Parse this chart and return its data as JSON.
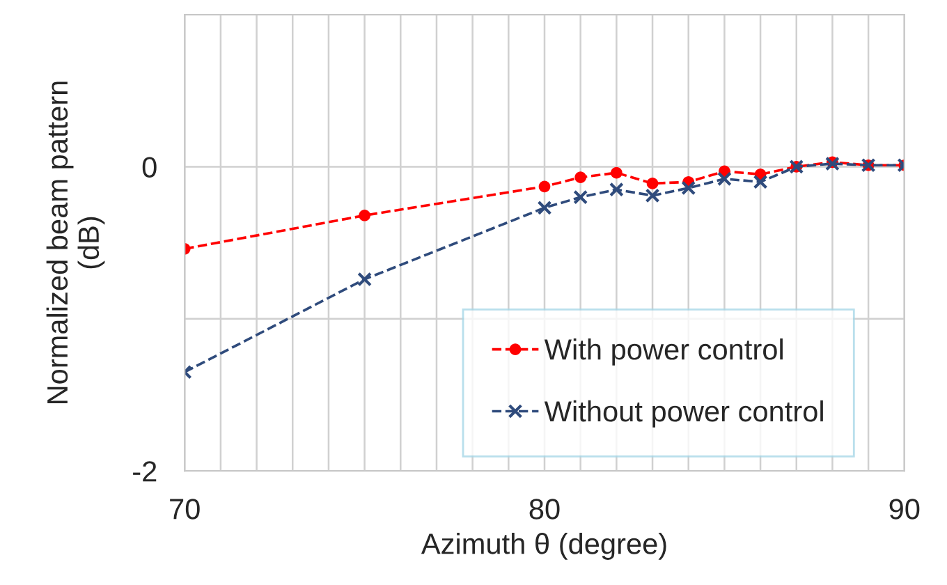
{
  "chart_data": {
    "type": "line",
    "xlabel": "Azimuth θ (degree)",
    "ylabel": "Normalized beam pattern\n(dB)",
    "x": [
      70,
      75,
      80,
      81,
      82,
      83,
      84,
      85,
      86,
      87,
      88,
      89,
      90
    ],
    "series": [
      {
        "name": "With power control",
        "color": "#ff0000",
        "marker": "circle",
        "values": [
          -0.54,
          -0.32,
          -0.13,
          -0.07,
          -0.04,
          -0.11,
          -0.1,
          -0.03,
          -0.05,
          0,
          0.03,
          0.01,
          0.01
        ]
      },
      {
        "name": "Without power control",
        "color": "#2f4b7c",
        "marker": "cross",
        "values": [
          -1.35,
          -0.74,
          -0.27,
          -0.2,
          -0.15,
          -0.19,
          -0.14,
          -0.08,
          -0.1,
          0,
          0.02,
          0.01,
          0.01
        ]
      }
    ],
    "line_style": "dashed",
    "xlim": [
      70,
      90
    ],
    "xticks": [
      70,
      {
        "value": 71,
        "label": null
      },
      {
        "value": 72,
        "label": null
      },
      {
        "value": 73,
        "label": null
      },
      {
        "value": 74,
        "label": null
      },
      {
        "value": 75,
        "label": null
      },
      {
        "value": 76,
        "label": null
      },
      {
        "value": 77,
        "label": null
      },
      {
        "value": 78,
        "label": null
      },
      {
        "value": 79,
        "label": null
      },
      80,
      {
        "value": 81,
        "label": null
      },
      {
        "value": 82,
        "label": null
      },
      {
        "value": 83,
        "label": null
      },
      {
        "value": 84,
        "label": null
      },
      {
        "value": 85,
        "label": null
      },
      {
        "value": 86,
        "label": null
      },
      {
        "value": 87,
        "label": null
      },
      {
        "value": 88,
        "label": null
      },
      {
        "value": 89,
        "label": null
      },
      90
    ],
    "ylim": [
      -2,
      1
    ],
    "yticks": [
      -2,
      {
        "value": -1,
        "label": null
      },
      0,
      {
        "value": 1,
        "label": null
      }
    ],
    "grid": true,
    "legend": "bottom right"
  }
}
